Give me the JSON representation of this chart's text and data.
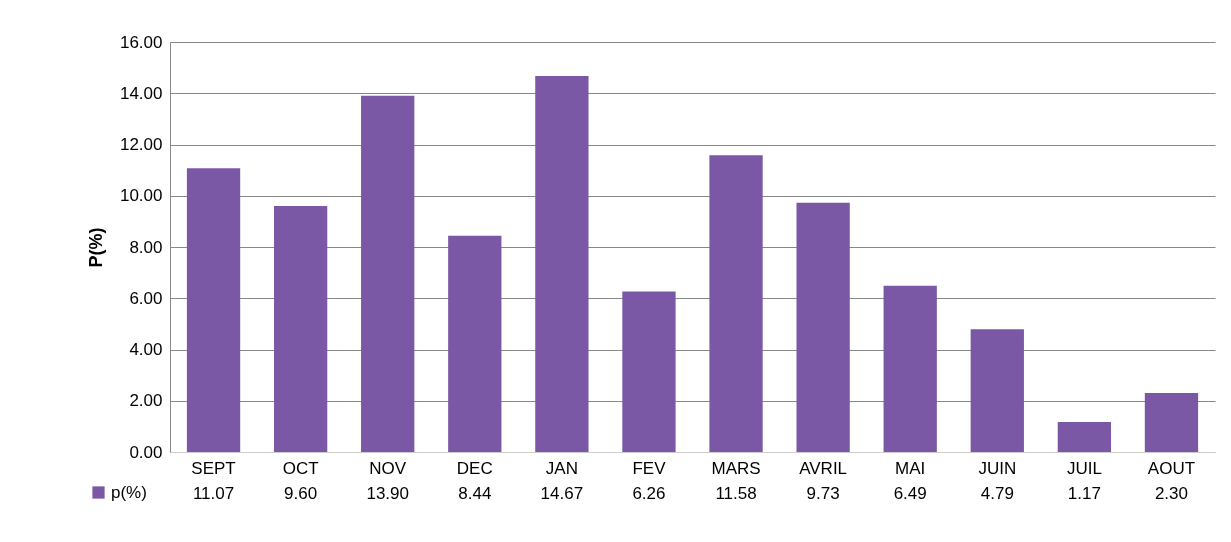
{
  "chart_data": {
    "type": "bar",
    "ylabel": "P(%)",
    "categories": [
      "SEPT",
      "OCT",
      "NOV",
      "DEC",
      "JAN",
      "FEV",
      "MARS",
      "AVRIL",
      "MAI",
      "JUIN",
      "JUIL",
      "AOUT"
    ],
    "series": [
      {
        "name": "p(%)",
        "color": "#7b58a6",
        "values": [
          11.07,
          9.6,
          13.9,
          8.44,
          14.67,
          6.26,
          11.58,
          9.73,
          6.49,
          4.79,
          1.17,
          2.3
        ],
        "value_labels": [
          "11.07",
          "9.60",
          "13.90",
          "8.44",
          "14.67",
          "6.26",
          "11.58",
          "9.73",
          "6.49",
          "4.79",
          "1.17",
          "2.30"
        ]
      }
    ],
    "ylim": [
      0,
      16
    ],
    "yticks": [
      {
        "value": 0,
        "label": "0.00"
      },
      {
        "value": 2,
        "label": "2.00"
      },
      {
        "value": 4,
        "label": "4.00"
      },
      {
        "value": 6,
        "label": "6.00"
      },
      {
        "value": 8,
        "label": "8.00"
      },
      {
        "value": 10,
        "label": "10.00"
      },
      {
        "value": 12,
        "label": "12.00"
      },
      {
        "value": 14,
        "label": "14.00"
      },
      {
        "value": 16,
        "label": "16.00"
      }
    ],
    "grid": "y",
    "legend": "bottom left"
  }
}
